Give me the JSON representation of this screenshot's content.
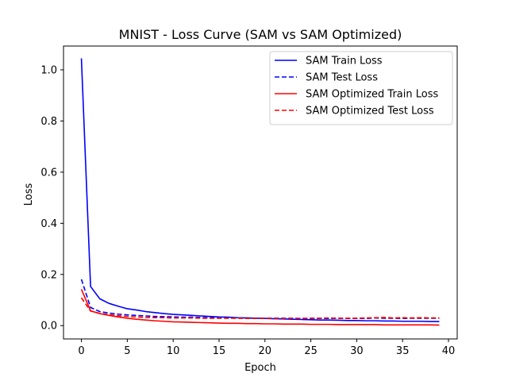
{
  "chart_data": {
    "type": "line",
    "title": "MNIST - Loss Curve (SAM vs SAM Optimized)",
    "xlabel": "Epoch",
    "ylabel": "Loss",
    "xlim": [
      -1.95,
      40.95
    ],
    "ylim": [
      -0.052,
      1.093
    ],
    "xticks": [
      0,
      5,
      10,
      15,
      20,
      25,
      30,
      35,
      40
    ],
    "yticks": [
      0.0,
      0.2,
      0.4,
      0.6,
      0.8,
      1.0
    ],
    "grid": false,
    "legend_position": "top-right",
    "x": [
      0,
      1,
      2,
      3,
      4,
      5,
      6,
      7,
      8,
      9,
      10,
      11,
      12,
      13,
      14,
      15,
      16,
      17,
      18,
      19,
      20,
      21,
      22,
      23,
      24,
      25,
      26,
      27,
      28,
      29,
      30,
      31,
      32,
      33,
      34,
      35,
      36,
      37,
      38,
      39
    ],
    "series": [
      {
        "name": "SAM Train Loss",
        "color": "#0000ff",
        "style": "solid",
        "values": [
          1.045,
          0.153,
          0.105,
          0.087,
          0.076,
          0.066,
          0.061,
          0.055,
          0.051,
          0.047,
          0.044,
          0.042,
          0.04,
          0.038,
          0.036,
          0.034,
          0.033,
          0.031,
          0.03,
          0.029,
          0.028,
          0.027,
          0.026,
          0.025,
          0.024,
          0.023,
          0.022,
          0.022,
          0.021,
          0.02,
          0.02,
          0.019,
          0.019,
          0.018,
          0.018,
          0.017,
          0.017,
          0.017,
          0.016,
          0.016
        ]
      },
      {
        "name": "SAM Test Loss",
        "color": "#0000ff",
        "style": "dashed",
        "values": [
          0.181,
          0.071,
          0.055,
          0.049,
          0.045,
          0.042,
          0.04,
          0.038,
          0.036,
          0.035,
          0.034,
          0.033,
          0.033,
          0.032,
          0.031,
          0.031,
          0.03,
          0.03,
          0.03,
          0.029,
          0.029,
          0.029,
          0.029,
          0.028,
          0.028,
          0.028,
          0.028,
          0.028,
          0.029,
          0.028,
          0.028,
          0.028,
          0.03,
          0.029,
          0.029,
          0.028,
          0.029,
          0.029,
          0.029,
          0.029
        ]
      },
      {
        "name": "SAM Optimized Train Loss",
        "color": "#ff0000",
        "style": "solid",
        "values": [
          0.142,
          0.058,
          0.047,
          0.04,
          0.034,
          0.029,
          0.025,
          0.022,
          0.019,
          0.017,
          0.015,
          0.014,
          0.013,
          0.012,
          0.011,
          0.01,
          0.009,
          0.009,
          0.008,
          0.008,
          0.007,
          0.007,
          0.006,
          0.006,
          0.006,
          0.005,
          0.005,
          0.005,
          0.004,
          0.004,
          0.004,
          0.004,
          0.004,
          0.003,
          0.003,
          0.003,
          0.003,
          0.003,
          0.003,
          0.002
        ]
      },
      {
        "name": "SAM Optimized Test Loss",
        "color": "#ff0000",
        "style": "dashed",
        "values": [
          0.109,
          0.057,
          0.048,
          0.043,
          0.039,
          0.036,
          0.034,
          0.032,
          0.031,
          0.031,
          0.03,
          0.03,
          0.03,
          0.029,
          0.029,
          0.029,
          0.029,
          0.029,
          0.028,
          0.028,
          0.028,
          0.028,
          0.028,
          0.029,
          0.028,
          0.029,
          0.029,
          0.03,
          0.029,
          0.029,
          0.029,
          0.03,
          0.031,
          0.032,
          0.03,
          0.031,
          0.03,
          0.031,
          0.03,
          0.03
        ]
      }
    ]
  }
}
